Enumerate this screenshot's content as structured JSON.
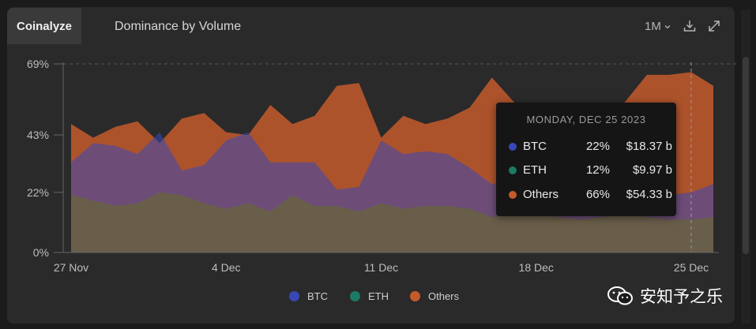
{
  "header": {
    "brand": "Coinalyze",
    "title": "Dominance by Volume",
    "timeframe": "1M"
  },
  "tooltip": {
    "date": "MONDAY, DEC 25 2023",
    "rows": [
      {
        "name": "BTC",
        "pct": "22%",
        "value": "$18.37 b",
        "color": "#3848b8"
      },
      {
        "name": "ETH",
        "pct": "12%",
        "value": "$9.97 b",
        "color": "#1d7a64"
      },
      {
        "name": "Others",
        "pct": "66%",
        "value": "$54.33 b",
        "color": "#c45a2c"
      }
    ]
  },
  "legend": [
    {
      "name": "BTC",
      "color": "#3848b8"
    },
    {
      "name": "ETH",
      "color": "#1d7a64"
    },
    {
      "name": "Others",
      "color": "#c45a2c"
    }
  ],
  "watermark": "安知予之乐",
  "chart_data": {
    "type": "area",
    "stacked": false,
    "y_ticks": [
      "0%",
      "22%",
      "43%",
      "69%"
    ],
    "y_tick_values": [
      0,
      22,
      43,
      69
    ],
    "ylim": [
      0,
      69
    ],
    "x_ticks": [
      "27 Nov",
      "4 Dec",
      "11 Dec",
      "18 Dec",
      "25 Dec"
    ],
    "x": [
      "27 Nov",
      "28 Nov",
      "29 Nov",
      "30 Nov",
      "1 Dec",
      "2 Dec",
      "3 Dec",
      "4 Dec",
      "5 Dec",
      "6 Dec",
      "7 Dec",
      "8 Dec",
      "9 Dec",
      "10 Dec",
      "11 Dec",
      "12 Dec",
      "13 Dec",
      "14 Dec",
      "15 Dec",
      "16 Dec",
      "17 Dec",
      "18 Dec",
      "19 Dec",
      "20 Dec",
      "21 Dec",
      "22 Dec",
      "23 Dec",
      "24 Dec",
      "25 Dec",
      "26 Dec"
    ],
    "series": [
      {
        "name": "Others",
        "color": "#c45a2c",
        "values": [
          47,
          42,
          46,
          48,
          40,
          49,
          51,
          44,
          43,
          54,
          47,
          50,
          61,
          62,
          42,
          50,
          47,
          49,
          53,
          64,
          55,
          48,
          46,
          49,
          52,
          55,
          65,
          65,
          66,
          61
        ]
      },
      {
        "name": "BTC",
        "color": "#3848b8",
        "values": [
          33,
          40,
          39,
          36,
          44,
          30,
          32,
          41,
          44,
          33,
          33,
          33,
          23,
          24,
          41,
          36,
          37,
          36,
          31,
          25,
          27,
          28,
          29,
          27,
          25,
          23,
          21,
          21,
          22,
          25
        ]
      },
      {
        "name": "ETH",
        "color": "#1d7a64",
        "values": [
          21,
          19,
          17,
          18,
          22,
          21,
          18,
          16,
          18,
          15,
          21,
          17,
          17,
          15,
          18,
          16,
          17,
          17,
          16,
          13,
          14,
          14,
          13,
          12,
          13,
          14,
          13,
          12,
          12,
          13
        ]
      }
    ],
    "highlight_x": "25 Dec",
    "grid": true
  }
}
